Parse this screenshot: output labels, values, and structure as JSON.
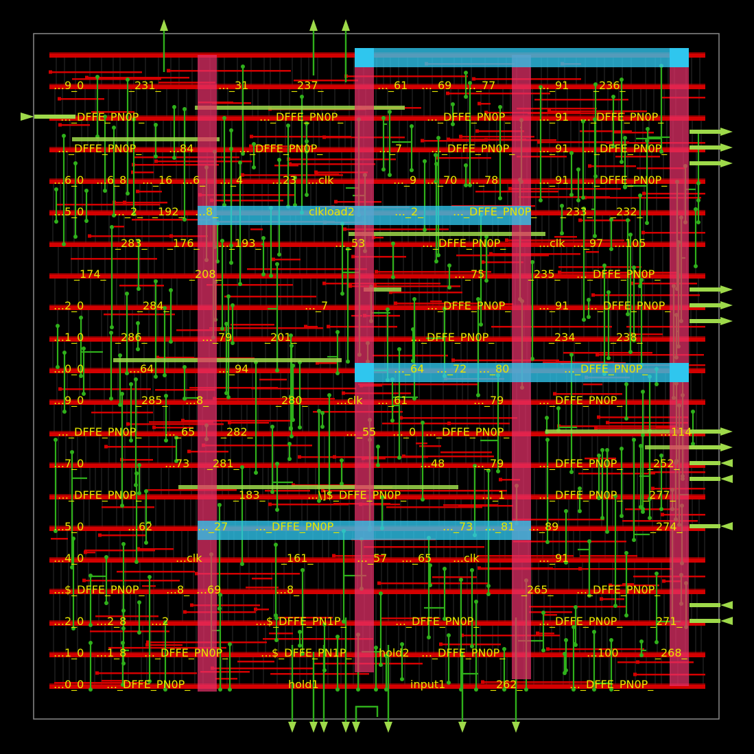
{
  "colors": {
    "background": "#000000",
    "die_border": "#8a8a8a",
    "metal_horizontal": "#d40000",
    "metal_vertical": "#2fb01b",
    "power_stripe": "#e8306a",
    "power_strap": "#2fc6ee",
    "pin": "#9ed94a",
    "cell_label": "#e6e600"
  },
  "cell_rows": [
    [
      "…9_0",
      "_231_",
      "…_31",
      "_237_",
      "…_61",
      "…_69",
      "…_77",
      "…_91",
      "_236_"
    ],
    [
      "…_DFFE_PN0P_",
      "…_DFFE_PN0P_",
      "…_DFFE_PN0P_",
      "…_91",
      "…_DFFE_PN0P_"
    ],
    [
      "…_DFFE_PN0P_",
      "…84",
      "…_DFFE_PN0P_",
      "…_7",
      "…_DFFE_PN0P_",
      "…_91",
      "…_DFFE_PN0P_"
    ],
    [
      "…6_0",
      "…6_8",
      "…_16",
      "…6_",
      "…_4",
      "…23",
      "…clk",
      "…_9",
      "…_70",
      "…_78",
      "…_91",
      "…_DFFE_PN0P_"
    ],
    [
      "…5_0",
      "…_2_",
      "_192_",
      "…8_",
      "clkload2",
      "…_2_",
      "…_DFFE_PN0P_",
      "_233_",
      "_232_"
    ],
    [
      "_283_",
      "_176_",
      "…_193_",
      "…_53",
      "…_DFFE_PN0P_",
      "…clk",
      "…_97",
      "…105"
    ],
    [
      "_174_",
      "_208_",
      "…_75",
      "_235_",
      "…_DFFE_PN0P_"
    ],
    [
      "…2_0",
      "_284_",
      "…_7",
      "…_DFFE_PN0P_",
      "…_91",
      "…_DFFE_PN0P_"
    ],
    [
      "…1_0",
      "_286_",
      "…_79",
      "_201_",
      "…_DFFE_PN0P_",
      "_234_",
      "_238_"
    ],
    [
      "…0_0",
      "…64",
      "…_94",
      "…_64",
      "…_72",
      "…_80",
      "…_DFFE_PN0P_"
    ],
    [
      "…9_0",
      "_285_",
      "…8_",
      "_280_",
      "…clk",
      "…_61",
      "…_79",
      "…_DFFE_PN0P_"
    ],
    [
      "…_DFFE_PN0P_",
      "…_65",
      "_282_",
      "…_55",
      "…_0",
      "…_DFFE_PN0P_",
      "…114"
    ],
    [
      "…7_0",
      "…73",
      "_281_",
      "…48",
      "…_79",
      "…_DFFE_PN0P_",
      "_252_"
    ],
    [
      "…_DFFE_PN0P_",
      "_183_",
      "…\\]$_DFFE_PN0P_",
      "…_1",
      "…_DFFE_PN0P_",
      "_277_"
    ],
    [
      "…5_0",
      "…62",
      "…_27",
      "…_DFFE_PN0P_",
      "…_73",
      "…_81",
      "…_89",
      "_274_"
    ],
    [
      "…4_0",
      "…clk",
      "_161_",
      "…_57",
      "…_65",
      "…clk",
      "…_91"
    ],
    [
      "…$_DFFE_PN0P_",
      "…8_",
      "…69",
      "…8_",
      "_265_",
      "…_DFFE_PN0P_"
    ],
    [
      "…2_0",
      "…2_8",
      "…2",
      "…$_DFFE_PN1P_",
      "…_DFFE_PN0P_",
      "…_DFFE_PN0P_",
      "_271_"
    ],
    [
      "…1_0",
      "…1_8",
      "…_DFFE_PN0P_",
      "…$_DFFE_PN1P_",
      "hold2",
      "…_DFFE_PN0P_",
      "…100",
      "_268_"
    ],
    [
      "…0_0",
      "…_DFFE_PN0P_",
      "hold1",
      "input1",
      "_262_",
      "…_DFFE_PN0P_"
    ]
  ]
}
